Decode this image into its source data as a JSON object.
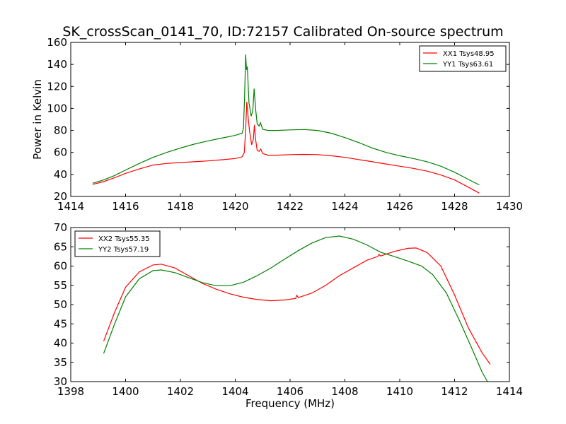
{
  "figure_title": "SK_crossScan_0141_70, ID:72157 Calibrated On-source spectrum",
  "chart_data": [
    {
      "type": "line",
      "title": "SK_crossScan_0141_70, ID:72157 Calibrated On-source spectrum",
      "xlabel": "",
      "ylabel": "Power in Kelvin",
      "xlim": [
        1414,
        1430
      ],
      "ylim": [
        20,
        160
      ],
      "xticks": [
        "1414",
        "1416",
        "1418",
        "1420",
        "1422",
        "1424",
        "1426",
        "1428",
        "1430"
      ],
      "yticks": [
        "20",
        "40",
        "60",
        "80",
        "100",
        "120",
        "140",
        "160"
      ],
      "legend_position": "top-right",
      "series": [
        {
          "name": "XX1 Tsys48.95",
          "color": "#ff0000",
          "points": [
            [
              1414.8,
              31
            ],
            [
              1415.2,
              33.5
            ],
            [
              1415.6,
              37
            ],
            [
              1416,
              41
            ],
            [
              1416.5,
              45
            ],
            [
              1417,
              48.5
            ],
            [
              1417.5,
              50
            ],
            [
              1418,
              50.8
            ],
            [
              1418.5,
              51.5
            ],
            [
              1419,
              52.3
            ],
            [
              1419.5,
              53.3
            ],
            [
              1420,
              54.5
            ],
            [
              1420.25,
              56
            ],
            [
              1420.33,
              60
            ],
            [
              1420.38,
              80
            ],
            [
              1420.42,
              106
            ],
            [
              1420.46,
              95
            ],
            [
              1420.52,
              80
            ],
            [
              1420.6,
              67
            ],
            [
              1420.66,
              72
            ],
            [
              1420.7,
              85
            ],
            [
              1420.74,
              72
            ],
            [
              1420.8,
              62
            ],
            [
              1420.87,
              61
            ],
            [
              1420.93,
              63
            ],
            [
              1421,
              59
            ],
            [
              1421.2,
              57.5
            ],
            [
              1421.5,
              57.5
            ],
            [
              1422,
              58
            ],
            [
              1422.5,
              58.2
            ],
            [
              1423,
              58
            ],
            [
              1423.5,
              57
            ],
            [
              1424,
              55.5
            ],
            [
              1424.5,
              53.5
            ],
            [
              1425,
              51.5
            ],
            [
              1425.5,
              49.5
            ],
            [
              1426,
              47.5
            ],
            [
              1426.5,
              45.5
            ],
            [
              1427,
              43
            ],
            [
              1427.5,
              39.5
            ],
            [
              1428,
              35
            ],
            [
              1428.5,
              28.5
            ],
            [
              1428.9,
              23
            ]
          ]
        },
        {
          "name": "YY1 Tsys63.61",
          "color": "#008000",
          "points": [
            [
              1414.8,
              32
            ],
            [
              1415.2,
              35
            ],
            [
              1415.6,
              39
            ],
            [
              1416,
              44
            ],
            [
              1416.5,
              50
            ],
            [
              1417,
              55.5
            ],
            [
              1417.5,
              60
            ],
            [
              1418,
              64
            ],
            [
              1418.5,
              67.5
            ],
            [
              1419,
              70.5
            ],
            [
              1419.5,
              73
            ],
            [
              1420,
              75.5
            ],
            [
              1420.25,
              77.5
            ],
            [
              1420.3,
              82
            ],
            [
              1420.34,
              110
            ],
            [
              1420.38,
              149
            ],
            [
              1420.41,
              135
            ],
            [
              1420.44,
              138
            ],
            [
              1420.5,
              105
            ],
            [
              1420.58,
              93
            ],
            [
              1420.64,
              98
            ],
            [
              1420.69,
              118
            ],
            [
              1420.74,
              100
            ],
            [
              1420.8,
              86
            ],
            [
              1420.87,
              84
            ],
            [
              1420.92,
              87
            ],
            [
              1421,
              81
            ],
            [
              1421.2,
              80
            ],
            [
              1421.5,
              80
            ],
            [
              1422,
              80.5
            ],
            [
              1422.5,
              80.8
            ],
            [
              1423,
              80
            ],
            [
              1423.5,
              77.5
            ],
            [
              1424,
              73.5
            ],
            [
              1424.5,
              69
            ],
            [
              1425,
              64
            ],
            [
              1425.5,
              60
            ],
            [
              1426,
              57
            ],
            [
              1426.5,
              54.5
            ],
            [
              1427,
              51.5
            ],
            [
              1427.5,
              47.5
            ],
            [
              1428,
              42
            ],
            [
              1428.5,
              35.5
            ],
            [
              1428.9,
              30.5
            ]
          ]
        }
      ]
    },
    {
      "type": "line",
      "title": "",
      "xlabel": "Frequency (MHz)",
      "ylabel": "",
      "xlim": [
        1398,
        1414
      ],
      "ylim": [
        30,
        70
      ],
      "xticks": [
        "1398",
        "1400",
        "1402",
        "1404",
        "1406",
        "1408",
        "1410",
        "1412",
        "1414"
      ],
      "yticks": [
        "30",
        "35",
        "40",
        "45",
        "50",
        "55",
        "60",
        "65",
        "70"
      ],
      "legend_position": "top-left",
      "series": [
        {
          "name": "XX2 Tsys55.35",
          "color": "#ff0000",
          "points": [
            [
              1399.2,
              40.5
            ],
            [
              1399.6,
              48
            ],
            [
              1400,
              54.5
            ],
            [
              1400.5,
              58.5
            ],
            [
              1401,
              60.3
            ],
            [
              1401.3,
              60.5
            ],
            [
              1401.8,
              59.5
            ],
            [
              1402.3,
              57.5
            ],
            [
              1402.8,
              55.5
            ],
            [
              1403.3,
              54
            ],
            [
              1403.8,
              52.8
            ],
            [
              1404.3,
              51.9
            ],
            [
              1404.8,
              51.3
            ],
            [
              1405.3,
              51
            ],
            [
              1405.8,
              51.2
            ],
            [
              1406.2,
              51.6
            ],
            [
              1406.25,
              52.4
            ],
            [
              1406.3,
              51.8
            ],
            [
              1406.8,
              53
            ],
            [
              1407.3,
              55
            ],
            [
              1407.8,
              57.5
            ],
            [
              1408.3,
              59.5
            ],
            [
              1408.8,
              61.5
            ],
            [
              1409.2,
              62.5
            ],
            [
              1409.25,
              63
            ],
            [
              1409.3,
              62.6
            ],
            [
              1409.8,
              63.8
            ],
            [
              1410.3,
              64.6
            ],
            [
              1410.6,
              64.7
            ],
            [
              1411,
              63.5
            ],
            [
              1411.5,
              60
            ],
            [
              1412,
              52.5
            ],
            [
              1412.5,
              44
            ],
            [
              1413,
              37.5
            ],
            [
              1413.3,
              34.5
            ]
          ]
        },
        {
          "name": "YY2 Tsys57.19",
          "color": "#008000",
          "points": [
            [
              1399.2,
              37.3
            ],
            [
              1399.6,
              45
            ],
            [
              1400,
              52
            ],
            [
              1400.5,
              56.7
            ],
            [
              1401,
              58.8
            ],
            [
              1401.3,
              59
            ],
            [
              1401.8,
              58.3
            ],
            [
              1402.3,
              57
            ],
            [
              1402.8,
              55.7
            ],
            [
              1403.3,
              54.9
            ],
            [
              1403.8,
              54.9
            ],
            [
              1404.3,
              55.8
            ],
            [
              1404.8,
              57.5
            ],
            [
              1405.3,
              59.5
            ],
            [
              1405.8,
              61.8
            ],
            [
              1406.3,
              64
            ],
            [
              1406.8,
              66
            ],
            [
              1407.3,
              67.4
            ],
            [
              1407.8,
              67.8
            ],
            [
              1408.3,
              67
            ],
            [
              1408.8,
              65.5
            ],
            [
              1409.3,
              63.6
            ],
            [
              1409.8,
              62.5
            ],
            [
              1410.3,
              61.3
            ],
            [
              1410.8,
              60
            ],
            [
              1411.2,
              57.8
            ],
            [
              1411.7,
              53
            ],
            [
              1412.2,
              45.5
            ],
            [
              1412.7,
              37.5
            ],
            [
              1413,
              32.5
            ],
            [
              1413.2,
              30
            ]
          ]
        }
      ]
    }
  ]
}
